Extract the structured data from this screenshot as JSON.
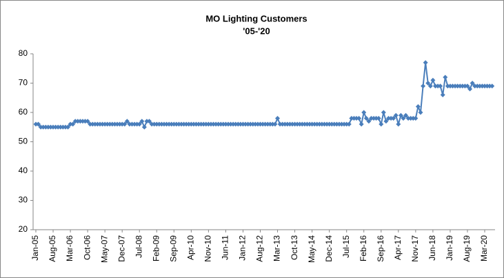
{
  "chart_data": {
    "type": "line",
    "title": "MO Lighting Customers",
    "subtitle": "'05-'20",
    "categories": [
      "Jan-05",
      null,
      null,
      null,
      null,
      null,
      null,
      "Aug-05",
      null,
      null,
      null,
      null,
      null,
      null,
      "Mar-06",
      null,
      null,
      null,
      null,
      null,
      null,
      "Oct-06",
      null,
      null,
      null,
      null,
      null,
      null,
      "May-07",
      null,
      null,
      null,
      null,
      null,
      null,
      "Dec-07",
      null,
      null,
      null,
      null,
      null,
      null,
      "Jul-08",
      null,
      null,
      null,
      null,
      null,
      null,
      "Feb-09",
      null,
      null,
      null,
      null,
      null,
      null,
      "Sep-09",
      null,
      null,
      null,
      null,
      null,
      null,
      "Apr-10",
      null,
      null,
      null,
      null,
      null,
      null,
      "Nov-10",
      null,
      null,
      null,
      null,
      null,
      null,
      "Jun-11",
      null,
      null,
      null,
      null,
      null,
      null,
      "Jan-12",
      null,
      null,
      null,
      null,
      null,
      null,
      "Aug-12",
      null,
      null,
      null,
      null,
      null,
      null,
      "Mar-13",
      null,
      null,
      null,
      null,
      null,
      null,
      "Oct-13",
      null,
      null,
      null,
      null,
      null,
      null,
      "May-14",
      null,
      null,
      null,
      null,
      null,
      null,
      "Dec-14",
      null,
      null,
      null,
      null,
      null,
      null,
      "Jul-15",
      null,
      null,
      null,
      null,
      null,
      null,
      "Feb-16",
      null,
      null,
      null,
      null,
      null,
      null,
      "Sep-16",
      null,
      null,
      null,
      null,
      null,
      null,
      "Apr-17",
      null,
      null,
      null,
      null,
      null,
      null,
      "Nov-17",
      null,
      null,
      null,
      null,
      null,
      null,
      "Jun-18",
      null,
      null,
      null,
      null,
      null,
      null,
      "Jan-19",
      null,
      null,
      null,
      null,
      null,
      null,
      "Aug-19",
      null,
      null,
      null,
      null,
      null,
      null,
      "Mar-20",
      null,
      null,
      null
    ],
    "series": [
      {
        "name": "MO Lighting Customers",
        "color": "#4a7ebb",
        "values": [
          56,
          56,
          55,
          55,
          55,
          55,
          55,
          55,
          55,
          55,
          55,
          55,
          55,
          55,
          56,
          56,
          57,
          57,
          57,
          57,
          57,
          57,
          56,
          56,
          56,
          56,
          56,
          56,
          56,
          56,
          56,
          56,
          56,
          56,
          56,
          56,
          56,
          57,
          56,
          56,
          56,
          56,
          56,
          57,
          55,
          57,
          57,
          56,
          56,
          56,
          56,
          56,
          56,
          56,
          56,
          56,
          56,
          56,
          56,
          56,
          56,
          56,
          56,
          56,
          56,
          56,
          56,
          56,
          56,
          56,
          56,
          56,
          56,
          56,
          56,
          56,
          56,
          56,
          56,
          56,
          56,
          56,
          56,
          56,
          56,
          56,
          56,
          56,
          56,
          56,
          56,
          56,
          56,
          56,
          56,
          56,
          56,
          56,
          58,
          56,
          56,
          56,
          56,
          56,
          56,
          56,
          56,
          56,
          56,
          56,
          56,
          56,
          56,
          56,
          56,
          56,
          56,
          56,
          56,
          56,
          56,
          56,
          56,
          56,
          56,
          56,
          56,
          56,
          58,
          58,
          58,
          58,
          56,
          60,
          58,
          57,
          58,
          58,
          58,
          58,
          56,
          60,
          57,
          58,
          58,
          58,
          59,
          56,
          59,
          58,
          59,
          58,
          58,
          58,
          58,
          62,
          60,
          69,
          77,
          70,
          69,
          71,
          69,
          69,
          69,
          66,
          72,
          69,
          69,
          69,
          69,
          69,
          69,
          69,
          69,
          69,
          68,
          70,
          69,
          69,
          69,
          69,
          69,
          69,
          69,
          69
        ]
      }
    ],
    "ylim": [
      20,
      80
    ],
    "yticks": [
      20,
      30,
      40,
      50,
      60,
      70,
      80
    ],
    "grid": false
  }
}
